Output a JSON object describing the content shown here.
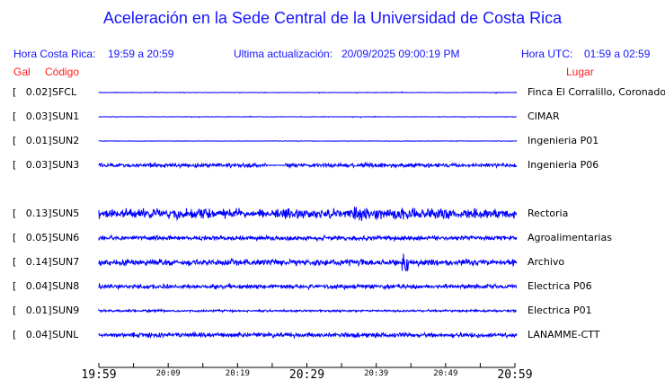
{
  "title": "Aceleración en la Sede Central de la Universidad de Costa Rica",
  "header": {
    "cr_label": "Hora Costa Rica:",
    "cr_range": "19:59 a 20:59",
    "update_label": "Ultima actualización:",
    "update_value": "20/09/2025 09:00:19 PM",
    "utc_label": "Hora UTC:",
    "utc_range": "01:59 a 02:59"
  },
  "columns": {
    "gal": "Gal",
    "code": "Código",
    "place": "Lugar"
  },
  "chart_data": {
    "type": "line",
    "title": "Aceleración en la Sede Central de la Universidad de Costa Rica",
    "xlabel": "",
    "ylabel": "",
    "x_ticks": [
      "19:59",
      "20:09",
      "20:19",
      "20:29",
      "20:39",
      "20:49",
      "20:59"
    ],
    "x_range": [
      "19:59",
      "20:59"
    ],
    "trace_color": "#0000ff",
    "stations": [
      {
        "gal": "[   0.02]",
        "code": "SFCL",
        "place": "Finca El Corralillo, Coronado"
      },
      {
        "gal": "[   0.03]",
        "code": "SUN1",
        "place": "CIMAR"
      },
      {
        "gal": "[   0.01]",
        "code": "SUN2",
        "place": "Ingenieria P01"
      },
      {
        "gal": "[   0.03]",
        "code": "SUN3",
        "place": "Ingenieria P06"
      },
      {
        "gal": "[   0.13]",
        "code": "SUN5",
        "place": "Rectoria"
      },
      {
        "gal": "[   0.05]",
        "code": "SUN6",
        "place": "Agroalimentarias"
      },
      {
        "gal": "[   0.14]",
        "code": "SUN7",
        "place": "Archivo"
      },
      {
        "gal": "[   0.04]",
        "code": "SUN8",
        "place": "Electrica P06"
      },
      {
        "gal": "[   0.01]",
        "code": "SUN9",
        "place": "Electrica P01"
      },
      {
        "gal": "[   0.04]",
        "code": "SUNL",
        "place": "LANAMME-CTT"
      }
    ]
  }
}
